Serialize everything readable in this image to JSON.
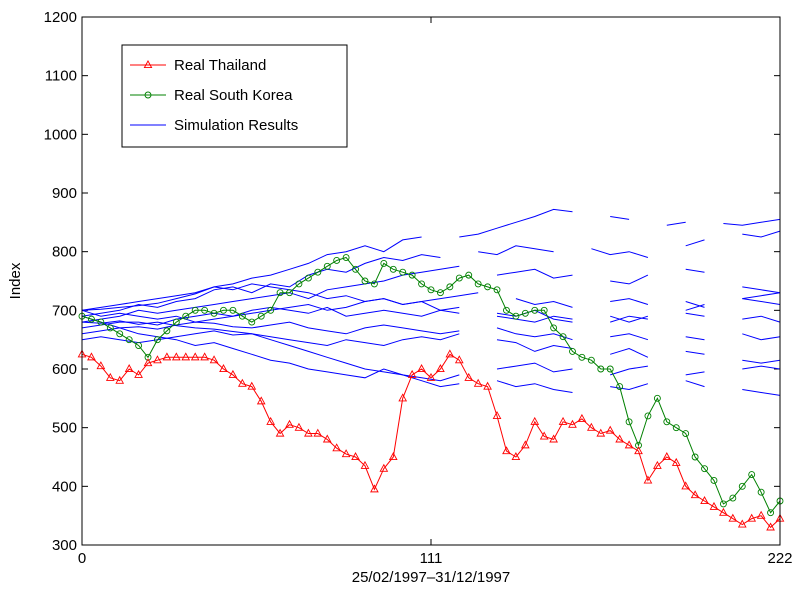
{
  "chart_data": {
    "type": "line",
    "xlabel": "25/02/1997–31/12/1997",
    "ylabel": "Index",
    "xlim": [
      0,
      222
    ],
    "xticks": [
      0,
      111,
      222
    ],
    "ylim": [
      300,
      1200
    ],
    "yticks": [
      300,
      400,
      500,
      600,
      700,
      800,
      900,
      1000,
      1100,
      1200
    ],
    "legend": "upper left",
    "series": [
      {
        "name": "Real Thailand",
        "color": "#ff0000",
        "marker": "triangle",
        "x": [
          0,
          3,
          6,
          9,
          12,
          15,
          18,
          21,
          24,
          27,
          30,
          33,
          36,
          39,
          42,
          45,
          48,
          51,
          54,
          57,
          60,
          63,
          66,
          69,
          72,
          75,
          78,
          81,
          84,
          87,
          90,
          93,
          96,
          99,
          102,
          105,
          108,
          111,
          114,
          117,
          120,
          123,
          126,
          129,
          132,
          135,
          138,
          141,
          144,
          147,
          150,
          153,
          156,
          159,
          162,
          165,
          168,
          171,
          174,
          177,
          180,
          183,
          186,
          189,
          192,
          195,
          198,
          201,
          204,
          207,
          210,
          213,
          216,
          219,
          222
        ],
        "values": [
          625,
          620,
          605,
          585,
          580,
          600,
          590,
          610,
          615,
          620,
          620,
          620,
          620,
          620,
          615,
          600,
          590,
          575,
          570,
          545,
          510,
          490,
          505,
          500,
          490,
          490,
          480,
          465,
          455,
          450,
          435,
          395,
          430,
          450,
          550,
          590,
          600,
          585,
          600,
          625,
          615,
          585,
          575,
          570,
          520,
          460,
          450,
          470,
          510,
          485,
          480,
          510,
          505,
          515,
          500,
          490,
          495,
          480,
          470,
          460,
          410,
          435,
          450,
          440,
          400,
          385,
          375,
          365,
          355,
          345,
          335,
          345,
          350,
          330,
          345
        ]
      },
      {
        "name": "Real South Korea",
        "color": "#008000",
        "marker": "circle",
        "x": [
          0,
          3,
          6,
          9,
          12,
          15,
          18,
          21,
          24,
          27,
          30,
          33,
          36,
          39,
          42,
          45,
          48,
          51,
          54,
          57,
          60,
          63,
          66,
          69,
          72,
          75,
          78,
          81,
          84,
          87,
          90,
          93,
          96,
          99,
          102,
          105,
          108,
          111,
          114,
          117,
          120,
          123,
          126,
          129,
          132,
          135,
          138,
          141,
          144,
          147,
          150,
          153,
          156,
          159,
          162,
          165,
          168,
          171,
          174,
          177,
          180,
          183,
          186,
          189,
          192,
          195,
          198,
          201,
          204,
          207,
          210,
          213,
          216,
          219,
          222
        ],
        "values": [
          690,
          685,
          680,
          670,
          660,
          650,
          640,
          620,
          650,
          665,
          680,
          690,
          700,
          700,
          695,
          700,
          700,
          690,
          680,
          690,
          700,
          730,
          730,
          745,
          755,
          765,
          775,
          785,
          790,
          770,
          750,
          745,
          780,
          770,
          765,
          760,
          745,
          735,
          730,
          740,
          755,
          760,
          745,
          740,
          735,
          700,
          690,
          695,
          700,
          700,
          670,
          655,
          630,
          620,
          615,
          600,
          600,
          570,
          510,
          470,
          520,
          550,
          510,
          500,
          490,
          450,
          430,
          410,
          370,
          380,
          400,
          420,
          390,
          355,
          375
        ]
      },
      {
        "name": "Simulation Results",
        "color": "#0000ff",
        "x": [
          0,
          6,
          12,
          18,
          24,
          30,
          36,
          42,
          48,
          54,
          60,
          66,
          72,
          78,
          84,
          90,
          96,
          102,
          108,
          114,
          120,
          126,
          132,
          138,
          144,
          150,
          156,
          162,
          168,
          174,
          180,
          186,
          192,
          198,
          204,
          210,
          216,
          222
        ],
        "runs": [
          [
            700,
            702,
            705,
            708,
            712,
            720,
            728,
            740,
            745,
            755,
            760,
            770,
            780,
            795,
            800,
            810,
            800,
            820,
            825,
            null,
            825,
            830,
            840,
            850,
            860,
            872,
            868,
            null,
            860,
            855,
            null,
            845,
            850,
            null,
            848,
            845,
            850,
            855
          ],
          [
            690,
            695,
            700,
            710,
            705,
            715,
            720,
            735,
            740,
            730,
            745,
            740,
            760,
            770,
            765,
            780,
            790,
            785,
            795,
            790,
            null,
            800,
            795,
            810,
            805,
            800,
            null,
            805,
            795,
            800,
            790,
            null,
            810,
            820,
            null,
            830,
            825,
            835
          ],
          [
            680,
            685,
            690,
            700,
            695,
            700,
            705,
            710,
            715,
            720,
            725,
            730,
            720,
            735,
            740,
            745,
            750,
            760,
            765,
            770,
            775,
            null,
            760,
            765,
            770,
            755,
            760,
            null,
            750,
            745,
            760,
            null,
            770,
            765,
            null,
            740,
            735,
            730
          ],
          [
            700,
            690,
            695,
            690,
            685,
            690,
            680,
            685,
            690,
            695,
            700,
            705,
            710,
            700,
            705,
            715,
            720,
            710,
            715,
            720,
            725,
            730,
            null,
            720,
            710,
            715,
            705,
            null,
            715,
            720,
            710,
            null,
            715,
            705,
            null,
            720,
            715,
            710
          ],
          [
            670,
            675,
            680,
            680,
            675,
            685,
            690,
            695,
            690,
            700,
            705,
            700,
            695,
            705,
            690,
            695,
            700,
            695,
            690,
            700,
            695,
            null,
            690,
            685,
            680,
            690,
            685,
            null,
            680,
            690,
            685,
            null,
            695,
            690,
            null,
            685,
            690,
            680
          ],
          [
            660,
            665,
            670,
            672,
            668,
            675,
            680,
            678,
            672,
            670,
            675,
            680,
            670,
            665,
            660,
            670,
            675,
            670,
            665,
            660,
            665,
            null,
            670,
            660,
            655,
            660,
            650,
            null,
            655,
            660,
            650,
            null,
            655,
            650,
            null,
            660,
            650,
            655
          ],
          [
            650,
            655,
            650,
            645,
            650,
            655,
            660,
            665,
            658,
            660,
            655,
            650,
            645,
            640,
            650,
            645,
            640,
            650,
            655,
            650,
            660,
            null,
            650,
            645,
            630,
            640,
            635,
            null,
            625,
            635,
            620,
            null,
            630,
            625,
            null,
            615,
            610,
            615
          ],
          [
            690,
            680,
            670,
            660,
            655,
            650,
            640,
            645,
            635,
            625,
            615,
            610,
            600,
            595,
            590,
            585,
            600,
            590,
            580,
            570,
            575,
            null,
            580,
            570,
            575,
            565,
            560,
            null,
            570,
            565,
            575,
            null,
            580,
            570,
            null,
            565,
            560,
            555
          ],
          [
            700,
            705,
            710,
            715,
            720,
            725,
            730,
            740,
            735,
            745,
            740,
            735,
            730,
            720,
            725,
            715,
            720,
            710,
            715,
            700,
            705,
            null,
            695,
            690,
            700,
            685,
            680,
            null,
            690,
            680,
            690,
            null,
            700,
            710,
            null,
            720,
            725,
            730
          ],
          [
            680,
            678,
            682,
            676,
            680,
            674,
            670,
            668,
            664,
            660,
            650,
            640,
            630,
            620,
            610,
            600,
            595,
            590,
            585,
            580,
            590,
            null,
            600,
            605,
            610,
            595,
            600,
            null,
            590,
            600,
            605,
            null,
            590,
            595,
            null,
            600,
            605,
            600
          ]
        ]
      }
    ]
  }
}
